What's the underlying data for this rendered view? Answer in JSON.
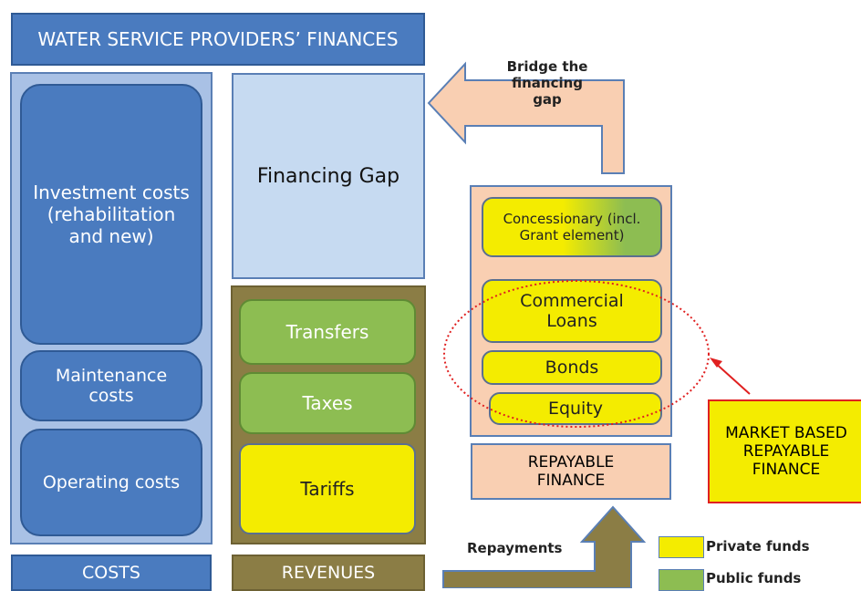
{
  "title": "WATER SERVICE PROVIDERS’ FINANCES",
  "costs": {
    "items": [
      "Investment costs (rehabilitation and new)",
      "Maintenance costs",
      "Operating costs"
    ],
    "label": "COSTS"
  },
  "revenues": {
    "gap": "Financing Gap",
    "items": [
      "Transfers",
      "Taxes",
      "Tariffs"
    ],
    "label": "REVENUES"
  },
  "bridge": "Bridge the financing gap",
  "finance": {
    "items": [
      "Concessionary (incl. Grant element)",
      "Commercial Loans",
      "Bonds",
      "Equity"
    ],
    "label": "REPAYABLE FINANCE"
  },
  "market": "MARKET BASED REPAYABLE FINANCE",
  "repayments": "Repayments",
  "legend": [
    "Private funds",
    "Public funds"
  ]
}
